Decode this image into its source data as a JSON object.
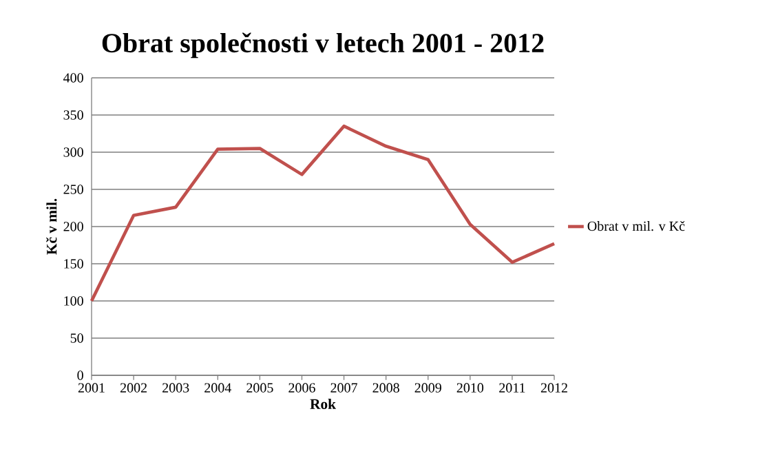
{
  "chart_data": {
    "type": "line",
    "title": "Obrat společnosti v letech 2001 - 2012",
    "xlabel": "Rok",
    "ylabel": "Kč v mil.",
    "categories": [
      "2001",
      "2002",
      "2003",
      "2004",
      "2005",
      "2006",
      "2007",
      "2008",
      "2009",
      "2010",
      "2011",
      "2012"
    ],
    "series": [
      {
        "name": "Obrat v mil. v Kč",
        "color": "#c0504d",
        "values": [
          100,
          215,
          226,
          304,
          305,
          270,
          335,
          308,
          290,
          203,
          152,
          177
        ]
      }
    ],
    "ylim": [
      0,
      400
    ],
    "yticks": [
      0,
      50,
      100,
      150,
      200,
      250,
      300,
      350,
      400
    ],
    "grid": "y",
    "legend": "right",
    "marker": "none",
    "line_style": "solid"
  }
}
